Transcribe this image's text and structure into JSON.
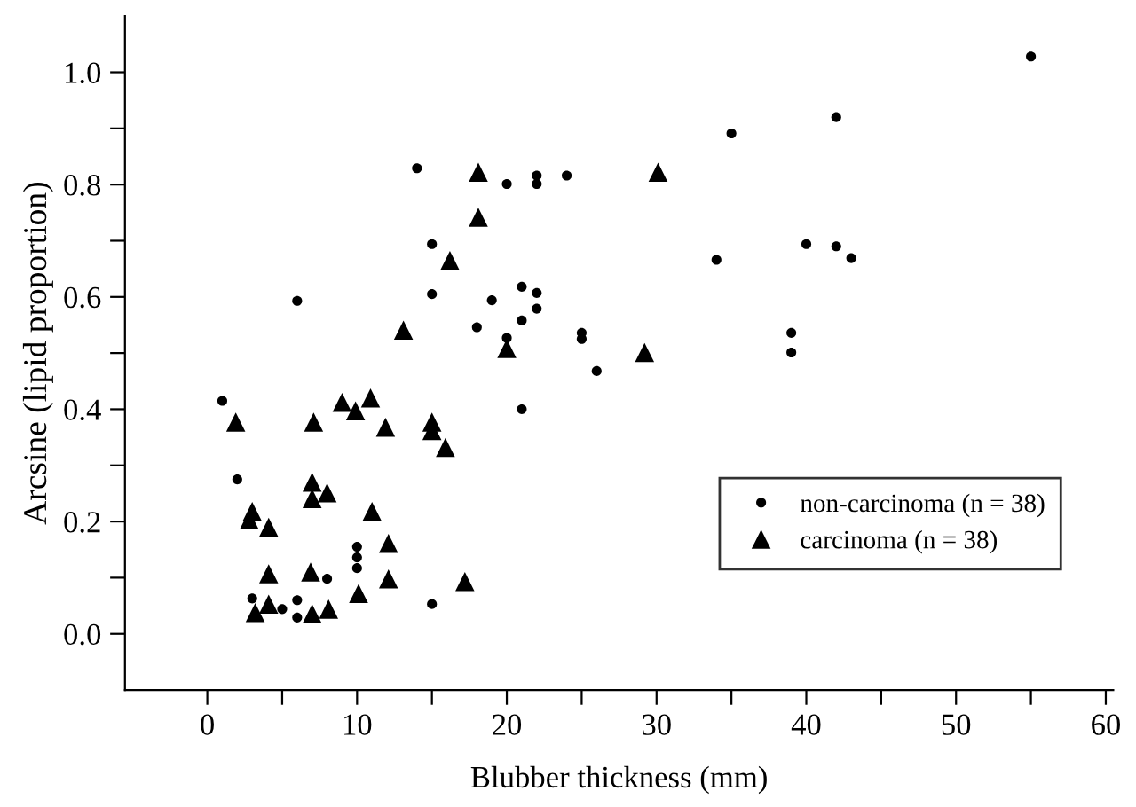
{
  "chart_data": {
    "type": "scatter",
    "xlabel": "Blubber thickness (mm)",
    "ylabel": "Arcsine (lipid proportion)",
    "xlim": [
      -5.5,
      60.5
    ],
    "ylim": [
      -0.1,
      1.1
    ],
    "xticks": [
      0,
      {
        "value": 5,
        "label": null
      },
      10,
      {
        "value": 15,
        "label": null
      },
      20,
      {
        "value": 25,
        "label": null
      },
      30,
      {
        "value": 35,
        "label": null
      },
      40,
      {
        "value": 45,
        "label": null
      },
      50,
      {
        "value": 55,
        "label": null
      },
      60
    ],
    "yticks": [
      {
        "value": 0,
        "label": "0.0"
      },
      {
        "value": 0.1,
        "label": null
      },
      {
        "value": 0.2,
        "label": "0.2"
      },
      {
        "value": 0.3,
        "label": null
      },
      {
        "value": 0.4,
        "label": "0.4"
      },
      {
        "value": 0.5,
        "label": null
      },
      {
        "value": 0.6,
        "label": "0.6"
      },
      {
        "value": 0.7,
        "label": null
      },
      {
        "value": 0.8,
        "label": "0.8"
      },
      {
        "value": 0.9,
        "label": null
      },
      {
        "value": 1.0,
        "label": "1.0"
      }
    ],
    "grid": false,
    "legend": "bottom right",
    "series": [
      {
        "name": "non-carcinoma (n = 38)",
        "color": "#000000",
        "marker": "circle",
        "x": [
          1,
          2,
          3,
          5,
          6,
          6,
          6,
          8,
          10,
          10,
          10,
          14,
          15,
          15,
          15,
          18,
          19,
          20,
          20,
          21,
          21,
          21,
          22,
          22,
          22,
          22,
          24,
          25,
          25,
          26,
          34,
          35,
          39,
          39,
          40,
          42,
          42,
          43,
          55
        ],
        "values": [
          0.415,
          0.275,
          0.063,
          0.044,
          0.593,
          0.06,
          0.029,
          0.098,
          0.155,
          0.136,
          0.117,
          0.829,
          0.694,
          0.605,
          0.053,
          0.546,
          0.594,
          0.801,
          0.527,
          0.4,
          0.618,
          0.558,
          0.816,
          0.801,
          0.607,
          0.579,
          0.816,
          0.536,
          0.525,
          0.468,
          0.666,
          0.891,
          0.536,
          0.501,
          0.694,
          0.69,
          0.92,
          0.669,
          1.028
        ]
      },
      {
        "name": "carcinoma (n = 38)",
        "color": "#000000",
        "marker": "triangle",
        "x": [
          1.9,
          3,
          2.8,
          4.1,
          4.1,
          3.2,
          4.1,
          7,
          7.1,
          7,
          8,
          6.9,
          7,
          8.1,
          9,
          9.9,
          10.9,
          11,
          10.1,
          11.9,
          12.1,
          12.1,
          13.1,
          15,
          15,
          15.9,
          16.2,
          17.2,
          18.1,
          18.1,
          20,
          29.2,
          30.1
        ],
        "values": [
          0.377,
          0.218,
          0.203,
          0.19,
          0.107,
          0.038,
          0.053,
          0.27,
          0.377,
          0.241,
          0.251,
          0.11,
          0.036,
          0.044,
          0.412,
          0.397,
          0.42,
          0.218,
          0.072,
          0.368,
          0.161,
          0.098,
          0.541,
          0.377,
          0.362,
          0.332,
          0.665,
          0.093,
          0.822,
          0.742,
          0.508,
          0.501,
          0.822
        ]
      }
    ]
  }
}
